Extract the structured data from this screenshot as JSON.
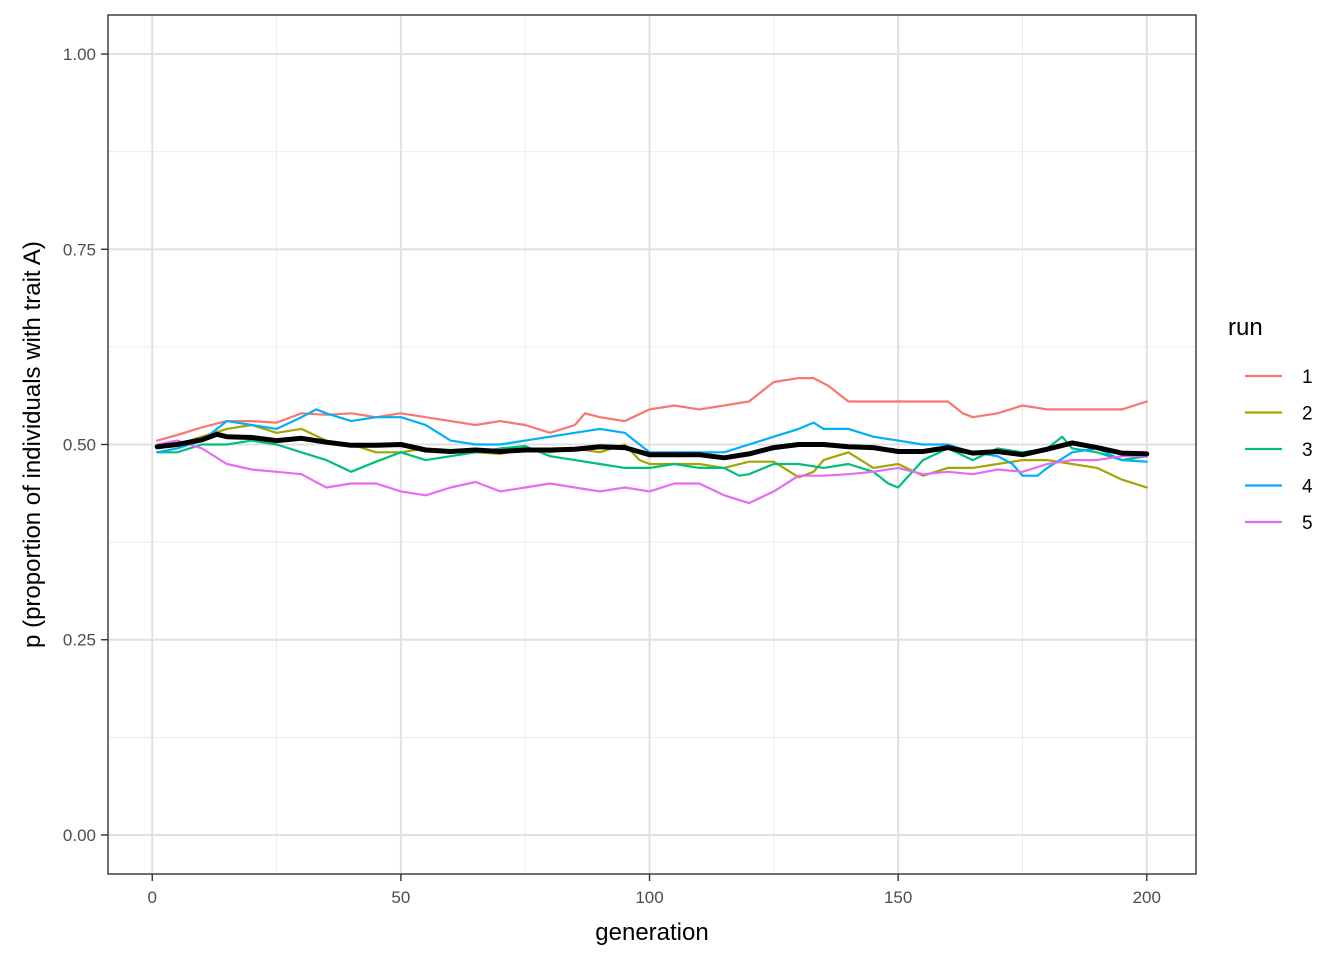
{
  "chart_data": {
    "type": "line",
    "xlabel": "generation",
    "ylabel": "p (proportion of individuals with trait A)",
    "xlim": [
      -8.9,
      209.9
    ],
    "ylim": [
      -0.05,
      1.05
    ],
    "x_ticks": [
      0,
      50,
      100,
      150,
      200
    ],
    "x_tick_labels": [
      "0",
      "50",
      "100",
      "150",
      "200"
    ],
    "y_ticks": [
      0,
      0.25,
      0.5,
      0.75,
      1
    ],
    "y_tick_labels": [
      "0.00",
      "0.25",
      "0.50",
      "0.75",
      "1.00"
    ],
    "grid": true,
    "legend": {
      "title": "run",
      "position": "right"
    },
    "series": [
      {
        "name": "1",
        "color": "#F8766D",
        "points": [
          [
            1,
            0.505
          ],
          [
            5,
            0.512
          ],
          [
            10,
            0.522
          ],
          [
            15,
            0.53
          ],
          [
            20,
            0.53
          ],
          [
            25,
            0.528
          ],
          [
            30,
            0.54
          ],
          [
            35,
            0.538
          ],
          [
            40,
            0.54
          ],
          [
            45,
            0.535
          ],
          [
            50,
            0.54
          ],
          [
            55,
            0.535
          ],
          [
            60,
            0.53
          ],
          [
            65,
            0.525
          ],
          [
            70,
            0.53
          ],
          [
            75,
            0.525
          ],
          [
            80,
            0.515
          ],
          [
            85,
            0.525
          ],
          [
            87,
            0.54
          ],
          [
            90,
            0.535
          ],
          [
            95,
            0.53
          ],
          [
            100,
            0.545
          ],
          [
            105,
            0.55
          ],
          [
            110,
            0.545
          ],
          [
            115,
            0.55
          ],
          [
            120,
            0.555
          ],
          [
            125,
            0.58
          ],
          [
            130,
            0.585
          ],
          [
            133,
            0.585
          ],
          [
            136,
            0.575
          ],
          [
            140,
            0.555
          ],
          [
            145,
            0.555
          ],
          [
            150,
            0.555
          ],
          [
            155,
            0.555
          ],
          [
            160,
            0.555
          ],
          [
            163,
            0.54
          ],
          [
            165,
            0.535
          ],
          [
            170,
            0.54
          ],
          [
            175,
            0.55
          ],
          [
            180,
            0.545
          ],
          [
            185,
            0.545
          ],
          [
            190,
            0.545
          ],
          [
            195,
            0.545
          ],
          [
            200,
            0.555
          ]
        ]
      },
      {
        "name": "2",
        "color": "#A3A500",
        "points": [
          [
            1,
            0.495
          ],
          [
            5,
            0.5
          ],
          [
            10,
            0.51
          ],
          [
            15,
            0.52
          ],
          [
            20,
            0.525
          ],
          [
            25,
            0.515
          ],
          [
            30,
            0.52
          ],
          [
            35,
            0.505
          ],
          [
            40,
            0.5
          ],
          [
            45,
            0.49
          ],
          [
            50,
            0.49
          ],
          [
            55,
            0.495
          ],
          [
            60,
            0.49
          ],
          [
            65,
            0.49
          ],
          [
            70,
            0.488
          ],
          [
            75,
            0.495
          ],
          [
            80,
            0.49
          ],
          [
            85,
            0.495
          ],
          [
            90,
            0.49
          ],
          [
            95,
            0.5
          ],
          [
            98,
            0.48
          ],
          [
            100,
            0.475
          ],
          [
            105,
            0.475
          ],
          [
            110,
            0.475
          ],
          [
            115,
            0.47
          ],
          [
            120,
            0.478
          ],
          [
            125,
            0.478
          ],
          [
            130,
            0.458
          ],
          [
            133,
            0.465
          ],
          [
            135,
            0.48
          ],
          [
            140,
            0.49
          ],
          [
            145,
            0.47
          ],
          [
            150,
            0.475
          ],
          [
            155,
            0.46
          ],
          [
            160,
            0.47
          ],
          [
            165,
            0.47
          ],
          [
            170,
            0.475
          ],
          [
            175,
            0.48
          ],
          [
            180,
            0.48
          ],
          [
            185,
            0.475
          ],
          [
            190,
            0.47
          ],
          [
            195,
            0.455
          ],
          [
            200,
            0.445
          ]
        ]
      },
      {
        "name": "3",
        "color": "#00BF7D",
        "points": [
          [
            1,
            0.49
          ],
          [
            5,
            0.49
          ],
          [
            10,
            0.5
          ],
          [
            15,
            0.5
          ],
          [
            20,
            0.505
          ],
          [
            25,
            0.5
          ],
          [
            30,
            0.49
          ],
          [
            35,
            0.48
          ],
          [
            40,
            0.465
          ],
          [
            45,
            0.478
          ],
          [
            50,
            0.49
          ],
          [
            55,
            0.48
          ],
          [
            60,
            0.485
          ],
          [
            65,
            0.49
          ],
          [
            70,
            0.495
          ],
          [
            75,
            0.498
          ],
          [
            80,
            0.485
          ],
          [
            85,
            0.48
          ],
          [
            90,
            0.475
          ],
          [
            95,
            0.47
          ],
          [
            100,
            0.47
          ],
          [
            105,
            0.475
          ],
          [
            110,
            0.47
          ],
          [
            115,
            0.47
          ],
          [
            118,
            0.46
          ],
          [
            120,
            0.462
          ],
          [
            125,
            0.475
          ],
          [
            130,
            0.475
          ],
          [
            135,
            0.47
          ],
          [
            140,
            0.475
          ],
          [
            145,
            0.465
          ],
          [
            148,
            0.45
          ],
          [
            150,
            0.445
          ],
          [
            155,
            0.48
          ],
          [
            160,
            0.495
          ],
          [
            165,
            0.48
          ],
          [
            170,
            0.495
          ],
          [
            175,
            0.49
          ],
          [
            180,
            0.495
          ],
          [
            183,
            0.51
          ],
          [
            185,
            0.495
          ],
          [
            190,
            0.49
          ],
          [
            195,
            0.48
          ],
          [
            200,
            0.485
          ]
        ]
      },
      {
        "name": "4",
        "color": "#00B0F6",
        "points": [
          [
            1,
            0.49
          ],
          [
            5,
            0.495
          ],
          [
            10,
            0.505
          ],
          [
            15,
            0.53
          ],
          [
            20,
            0.525
          ],
          [
            25,
            0.52
          ],
          [
            30,
            0.535
          ],
          [
            33,
            0.545
          ],
          [
            35,
            0.54
          ],
          [
            40,
            0.53
          ],
          [
            45,
            0.535
          ],
          [
            50,
            0.535
          ],
          [
            55,
            0.525
          ],
          [
            60,
            0.505
          ],
          [
            65,
            0.5
          ],
          [
            70,
            0.5
          ],
          [
            75,
            0.505
          ],
          [
            80,
            0.51
          ],
          [
            85,
            0.515
          ],
          [
            90,
            0.52
          ],
          [
            95,
            0.515
          ],
          [
            98,
            0.5
          ],
          [
            100,
            0.49
          ],
          [
            105,
            0.49
          ],
          [
            110,
            0.49
          ],
          [
            115,
            0.49
          ],
          [
            120,
            0.5
          ],
          [
            125,
            0.51
          ],
          [
            130,
            0.52
          ],
          [
            133,
            0.528
          ],
          [
            135,
            0.52
          ],
          [
            140,
            0.52
          ],
          [
            145,
            0.51
          ],
          [
            150,
            0.505
          ],
          [
            155,
            0.5
          ],
          [
            160,
            0.5
          ],
          [
            165,
            0.49
          ],
          [
            170,
            0.485
          ],
          [
            173,
            0.475
          ],
          [
            175,
            0.46
          ],
          [
            178,
            0.46
          ],
          [
            180,
            0.47
          ],
          [
            185,
            0.49
          ],
          [
            190,
            0.495
          ],
          [
            195,
            0.48
          ],
          [
            200,
            0.478
          ]
        ]
      },
      {
        "name": "5",
        "color": "#E76BF3",
        "points": [
          [
            1,
            0.5
          ],
          [
            5,
            0.505
          ],
          [
            10,
            0.495
          ],
          [
            15,
            0.475
          ],
          [
            20,
            0.468
          ],
          [
            25,
            0.465
          ],
          [
            30,
            0.462
          ],
          [
            35,
            0.445
          ],
          [
            40,
            0.45
          ],
          [
            45,
            0.45
          ],
          [
            50,
            0.44
          ],
          [
            55,
            0.435
          ],
          [
            60,
            0.445
          ],
          [
            65,
            0.452
          ],
          [
            70,
            0.44
          ],
          [
            75,
            0.445
          ],
          [
            80,
            0.45
          ],
          [
            85,
            0.445
          ],
          [
            90,
            0.44
          ],
          [
            95,
            0.445
          ],
          [
            100,
            0.44
          ],
          [
            105,
            0.45
          ],
          [
            110,
            0.45
          ],
          [
            115,
            0.435
          ],
          [
            120,
            0.425
          ],
          [
            125,
            0.44
          ],
          [
            130,
            0.46
          ],
          [
            135,
            0.46
          ],
          [
            140,
            0.462
          ],
          [
            145,
            0.465
          ],
          [
            150,
            0.47
          ],
          [
            155,
            0.462
          ],
          [
            160,
            0.465
          ],
          [
            165,
            0.462
          ],
          [
            170,
            0.468
          ],
          [
            175,
            0.465
          ],
          [
            180,
            0.475
          ],
          [
            185,
            0.48
          ],
          [
            190,
            0.48
          ],
          [
            195,
            0.485
          ],
          [
            200,
            0.485
          ]
        ]
      },
      {
        "name": "",
        "color": "#000000",
        "points": [
          [
            1,
            0.497
          ],
          [
            5,
            0.5
          ],
          [
            10,
            0.506
          ],
          [
            13,
            0.513
          ],
          [
            15,
            0.51
          ],
          [
            20,
            0.509
          ],
          [
            25,
            0.505
          ],
          [
            30,
            0.508
          ],
          [
            35,
            0.503
          ],
          [
            40,
            0.499
          ],
          [
            45,
            0.499
          ],
          [
            50,
            0.5
          ],
          [
            55,
            0.493
          ],
          [
            60,
            0.491
          ],
          [
            65,
            0.493
          ],
          [
            70,
            0.491
          ],
          [
            75,
            0.493
          ],
          [
            80,
            0.493
          ],
          [
            85,
            0.494
          ],
          [
            90,
            0.497
          ],
          [
            95,
            0.496
          ],
          [
            100,
            0.487
          ],
          [
            105,
            0.487
          ],
          [
            110,
            0.487
          ],
          [
            115,
            0.483
          ],
          [
            120,
            0.488
          ],
          [
            125,
            0.496
          ],
          [
            130,
            0.5
          ],
          [
            135,
            0.5
          ],
          [
            140,
            0.497
          ],
          [
            145,
            0.496
          ],
          [
            150,
            0.491
          ],
          [
            155,
            0.491
          ],
          [
            160,
            0.496
          ],
          [
            165,
            0.489
          ],
          [
            170,
            0.491
          ],
          [
            175,
            0.487
          ],
          [
            180,
            0.494
          ],
          [
            185,
            0.502
          ],
          [
            190,
            0.496
          ],
          [
            195,
            0.489
          ],
          [
            200,
            0.488
          ]
        ]
      }
    ]
  }
}
